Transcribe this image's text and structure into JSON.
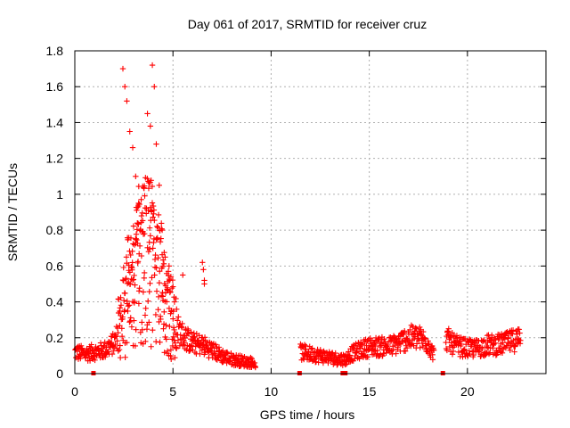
{
  "chart_data": {
    "type": "scatter",
    "title": "Day 061 of 2017, SRMTID for receiver cruz",
    "xlabel": "GPS time / hours",
    "ylabel": "SRMTID / TECUs",
    "xlim": [
      0,
      24
    ],
    "ylim": [
      0,
      1.8
    ],
    "xticks": [
      0,
      5,
      10,
      15,
      20
    ],
    "yticks": [
      0,
      0.2,
      0.4,
      0.6,
      0.8,
      1.0,
      1.2,
      1.4,
      1.6,
      1.8
    ],
    "xtick_labels": [
      "0",
      "5",
      "10",
      "15",
      "20"
    ],
    "ytick_labels": [
      "0",
      "0.2",
      "0.4",
      "0.6",
      "0.8",
      "1",
      "1.2",
      "1.4",
      "1.6",
      "1.8"
    ],
    "grid": true,
    "series": [
      {
        "name": "SRMTID",
        "color": "#ff0000",
        "marker": "plus",
        "segments": [
          {
            "x_start": 0.0,
            "x_end": 9.2,
            "trend": [
              [
                0,
                0.12
              ],
              [
                0.5,
                0.11
              ],
              [
                1.0,
                0.12
              ],
              [
                1.5,
                0.13
              ],
              [
                2.0,
                0.17
              ],
              [
                2.4,
                0.28
              ],
              [
                2.8,
                0.45
              ],
              [
                3.2,
                0.55
              ],
              [
                3.6,
                0.62
              ],
              [
                4.0,
                0.55
              ],
              [
                4.4,
                0.45
              ],
              [
                4.8,
                0.35
              ],
              [
                5.2,
                0.25
              ],
              [
                5.6,
                0.2
              ],
              [
                6.0,
                0.17
              ],
              [
                6.5,
                0.16
              ],
              [
                7.0,
                0.13
              ],
              [
                7.5,
                0.1
              ],
              [
                8.0,
                0.08
              ],
              [
                8.5,
                0.07
              ],
              [
                9.2,
                0.06
              ]
            ]
          },
          {
            "x_start": 11.5,
            "x_end": 13.9,
            "trend": [
              [
                11.5,
                0.12
              ],
              [
                12.0,
                0.11
              ],
              [
                12.5,
                0.1
              ],
              [
                13.0,
                0.09
              ],
              [
                13.5,
                0.08
              ],
              [
                13.9,
                0.08
              ]
            ]
          },
          {
            "x_start": 13.9,
            "x_end": 18.3,
            "trend": [
              [
                13.9,
                0.1
              ],
              [
                14.5,
                0.13
              ],
              [
                15.0,
                0.15
              ],
              [
                15.5,
                0.15
              ],
              [
                16.0,
                0.15
              ],
              [
                16.5,
                0.17
              ],
              [
                17.0,
                0.2
              ],
              [
                17.5,
                0.2
              ],
              [
                18.0,
                0.17
              ],
              [
                18.3,
                0.1
              ]
            ]
          },
          {
            "x_start": 18.9,
            "x_end": 22.7,
            "trend": [
              [
                18.9,
                0.2
              ],
              [
                19.3,
                0.16
              ],
              [
                20.0,
                0.14
              ],
              [
                20.5,
                0.14
              ],
              [
                21.0,
                0.16
              ],
              [
                21.5,
                0.16
              ],
              [
                22.0,
                0.17
              ],
              [
                22.7,
                0.2
              ]
            ]
          }
        ],
        "peaks": [
          [
            2.45,
            1.7
          ],
          [
            2.55,
            1.6
          ],
          [
            2.65,
            1.52
          ],
          [
            2.8,
            1.35
          ],
          [
            2.95,
            1.26
          ],
          [
            3.1,
            1.1
          ],
          [
            3.25,
            0.95
          ],
          [
            3.4,
            0.88
          ],
          [
            3.55,
            0.78
          ],
          [
            3.7,
            1.45
          ],
          [
            3.85,
            1.38
          ],
          [
            3.95,
            1.72
          ],
          [
            4.05,
            1.6
          ],
          [
            4.15,
            1.28
          ],
          [
            4.3,
            1.05
          ],
          [
            4.45,
            0.8
          ],
          [
            4.6,
            0.65
          ],
          [
            4.8,
            0.6
          ],
          [
            5.5,
            0.55
          ],
          [
            6.5,
            0.62
          ],
          [
            6.55,
            0.58
          ],
          [
            6.6,
            0.52
          ],
          [
            6.6,
            0.5
          ]
        ],
        "gap_markers_x": [
          0.95,
          11.45,
          13.65,
          13.78,
          18.75
        ]
      }
    ]
  }
}
